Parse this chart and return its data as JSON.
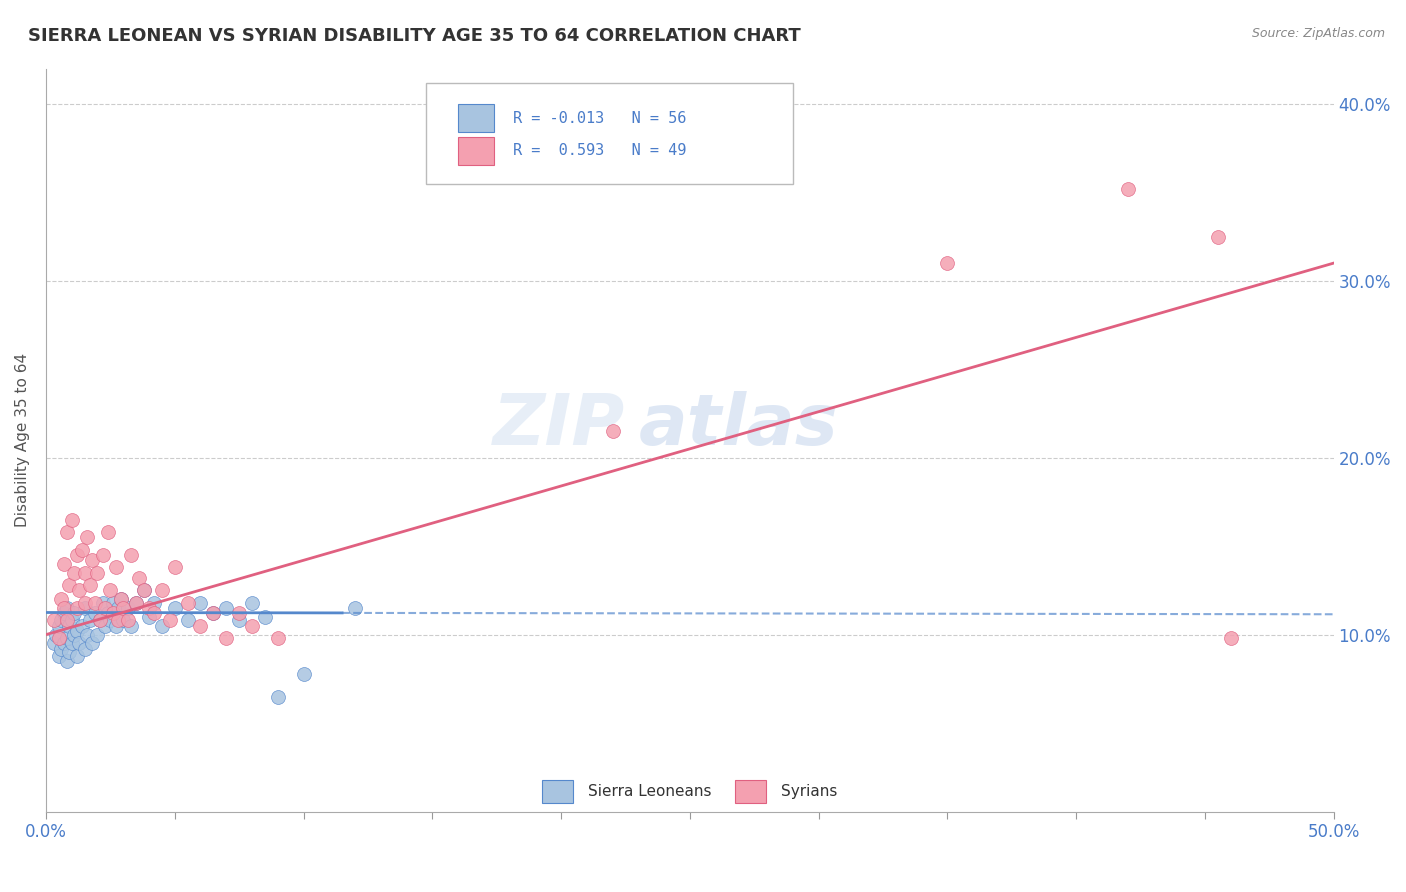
{
  "title": "SIERRA LEONEAN VS SYRIAN DISABILITY AGE 35 TO 64 CORRELATION CHART",
  "source_text": "Source: ZipAtlas.com",
  "ylabel": "Disability Age 35 to 64",
  "xlim": [
    0.0,
    0.5
  ],
  "ylim": [
    0.0,
    0.42
  ],
  "xticks": [
    0.0,
    0.05,
    0.1,
    0.15,
    0.2,
    0.25,
    0.3,
    0.35,
    0.4,
    0.45,
    0.5
  ],
  "ytick_positions": [
    0.1,
    0.2,
    0.3,
    0.4
  ],
  "ytick_labels": [
    "10.0%",
    "20.0%",
    "30.0%",
    "40.0%"
  ],
  "color_sl": "#a8c4e0",
  "color_sy": "#f4a0b0",
  "color_sl_line": "#5588cc",
  "color_sy_line": "#e06080",
  "watermark_zip": "ZIP",
  "watermark_atlas": "atlas",
  "sl_R": -0.013,
  "sl_intercept": 0.112,
  "sy_R": 0.593,
  "sy_intercept": 0.075,
  "sy_slope": 0.47,
  "sl_points": [
    [
      0.003,
      0.095
    ],
    [
      0.004,
      0.1
    ],
    [
      0.005,
      0.088
    ],
    [
      0.005,
      0.105
    ],
    [
      0.006,
      0.092
    ],
    [
      0.006,
      0.108
    ],
    [
      0.007,
      0.095
    ],
    [
      0.007,
      0.112
    ],
    [
      0.008,
      0.085
    ],
    [
      0.008,
      0.098
    ],
    [
      0.008,
      0.115
    ],
    [
      0.009,
      0.09
    ],
    [
      0.009,
      0.105
    ],
    [
      0.01,
      0.095
    ],
    [
      0.01,
      0.108
    ],
    [
      0.011,
      0.1
    ],
    [
      0.011,
      0.112
    ],
    [
      0.012,
      0.088
    ],
    [
      0.012,
      0.102
    ],
    [
      0.013,
      0.095
    ],
    [
      0.014,
      0.105
    ],
    [
      0.015,
      0.092
    ],
    [
      0.015,
      0.115
    ],
    [
      0.016,
      0.1
    ],
    [
      0.017,
      0.108
    ],
    [
      0.018,
      0.095
    ],
    [
      0.019,
      0.112
    ],
    [
      0.02,
      0.1
    ],
    [
      0.021,
      0.108
    ],
    [
      0.022,
      0.118
    ],
    [
      0.023,
      0.105
    ],
    [
      0.024,
      0.112
    ],
    [
      0.025,
      0.108
    ],
    [
      0.026,
      0.118
    ],
    [
      0.027,
      0.105
    ],
    [
      0.028,
      0.115
    ],
    [
      0.029,
      0.12
    ],
    [
      0.03,
      0.108
    ],
    [
      0.032,
      0.115
    ],
    [
      0.033,
      0.105
    ],
    [
      0.035,
      0.118
    ],
    [
      0.038,
      0.125
    ],
    [
      0.04,
      0.11
    ],
    [
      0.042,
      0.118
    ],
    [
      0.045,
      0.105
    ],
    [
      0.05,
      0.115
    ],
    [
      0.055,
      0.108
    ],
    [
      0.06,
      0.118
    ],
    [
      0.065,
      0.112
    ],
    [
      0.07,
      0.115
    ],
    [
      0.075,
      0.108
    ],
    [
      0.08,
      0.118
    ],
    [
      0.085,
      0.11
    ],
    [
      0.09,
      0.065
    ],
    [
      0.1,
      0.078
    ],
    [
      0.12,
      0.115
    ]
  ],
  "sy_points": [
    [
      0.003,
      0.108
    ],
    [
      0.005,
      0.098
    ],
    [
      0.006,
      0.12
    ],
    [
      0.007,
      0.115
    ],
    [
      0.007,
      0.14
    ],
    [
      0.008,
      0.108
    ],
    [
      0.008,
      0.158
    ],
    [
      0.009,
      0.128
    ],
    [
      0.01,
      0.165
    ],
    [
      0.011,
      0.135
    ],
    [
      0.012,
      0.115
    ],
    [
      0.012,
      0.145
    ],
    [
      0.013,
      0.125
    ],
    [
      0.014,
      0.148
    ],
    [
      0.015,
      0.118
    ],
    [
      0.015,
      0.135
    ],
    [
      0.016,
      0.155
    ],
    [
      0.017,
      0.128
    ],
    [
      0.018,
      0.142
    ],
    [
      0.019,
      0.118
    ],
    [
      0.02,
      0.135
    ],
    [
      0.021,
      0.108
    ],
    [
      0.022,
      0.145
    ],
    [
      0.023,
      0.115
    ],
    [
      0.024,
      0.158
    ],
    [
      0.025,
      0.125
    ],
    [
      0.026,
      0.112
    ],
    [
      0.027,
      0.138
    ],
    [
      0.028,
      0.108
    ],
    [
      0.029,
      0.12
    ],
    [
      0.03,
      0.115
    ],
    [
      0.032,
      0.108
    ],
    [
      0.033,
      0.145
    ],
    [
      0.035,
      0.118
    ],
    [
      0.036,
      0.132
    ],
    [
      0.038,
      0.125
    ],
    [
      0.04,
      0.115
    ],
    [
      0.042,
      0.112
    ],
    [
      0.045,
      0.125
    ],
    [
      0.048,
      0.108
    ],
    [
      0.05,
      0.138
    ],
    [
      0.055,
      0.118
    ],
    [
      0.06,
      0.105
    ],
    [
      0.065,
      0.112
    ],
    [
      0.07,
      0.098
    ],
    [
      0.075,
      0.112
    ],
    [
      0.08,
      0.105
    ],
    [
      0.09,
      0.098
    ],
    [
      0.22,
      0.215
    ],
    [
      0.35,
      0.31
    ],
    [
      0.42,
      0.352
    ],
    [
      0.455,
      0.325
    ],
    [
      0.46,
      0.098
    ]
  ]
}
